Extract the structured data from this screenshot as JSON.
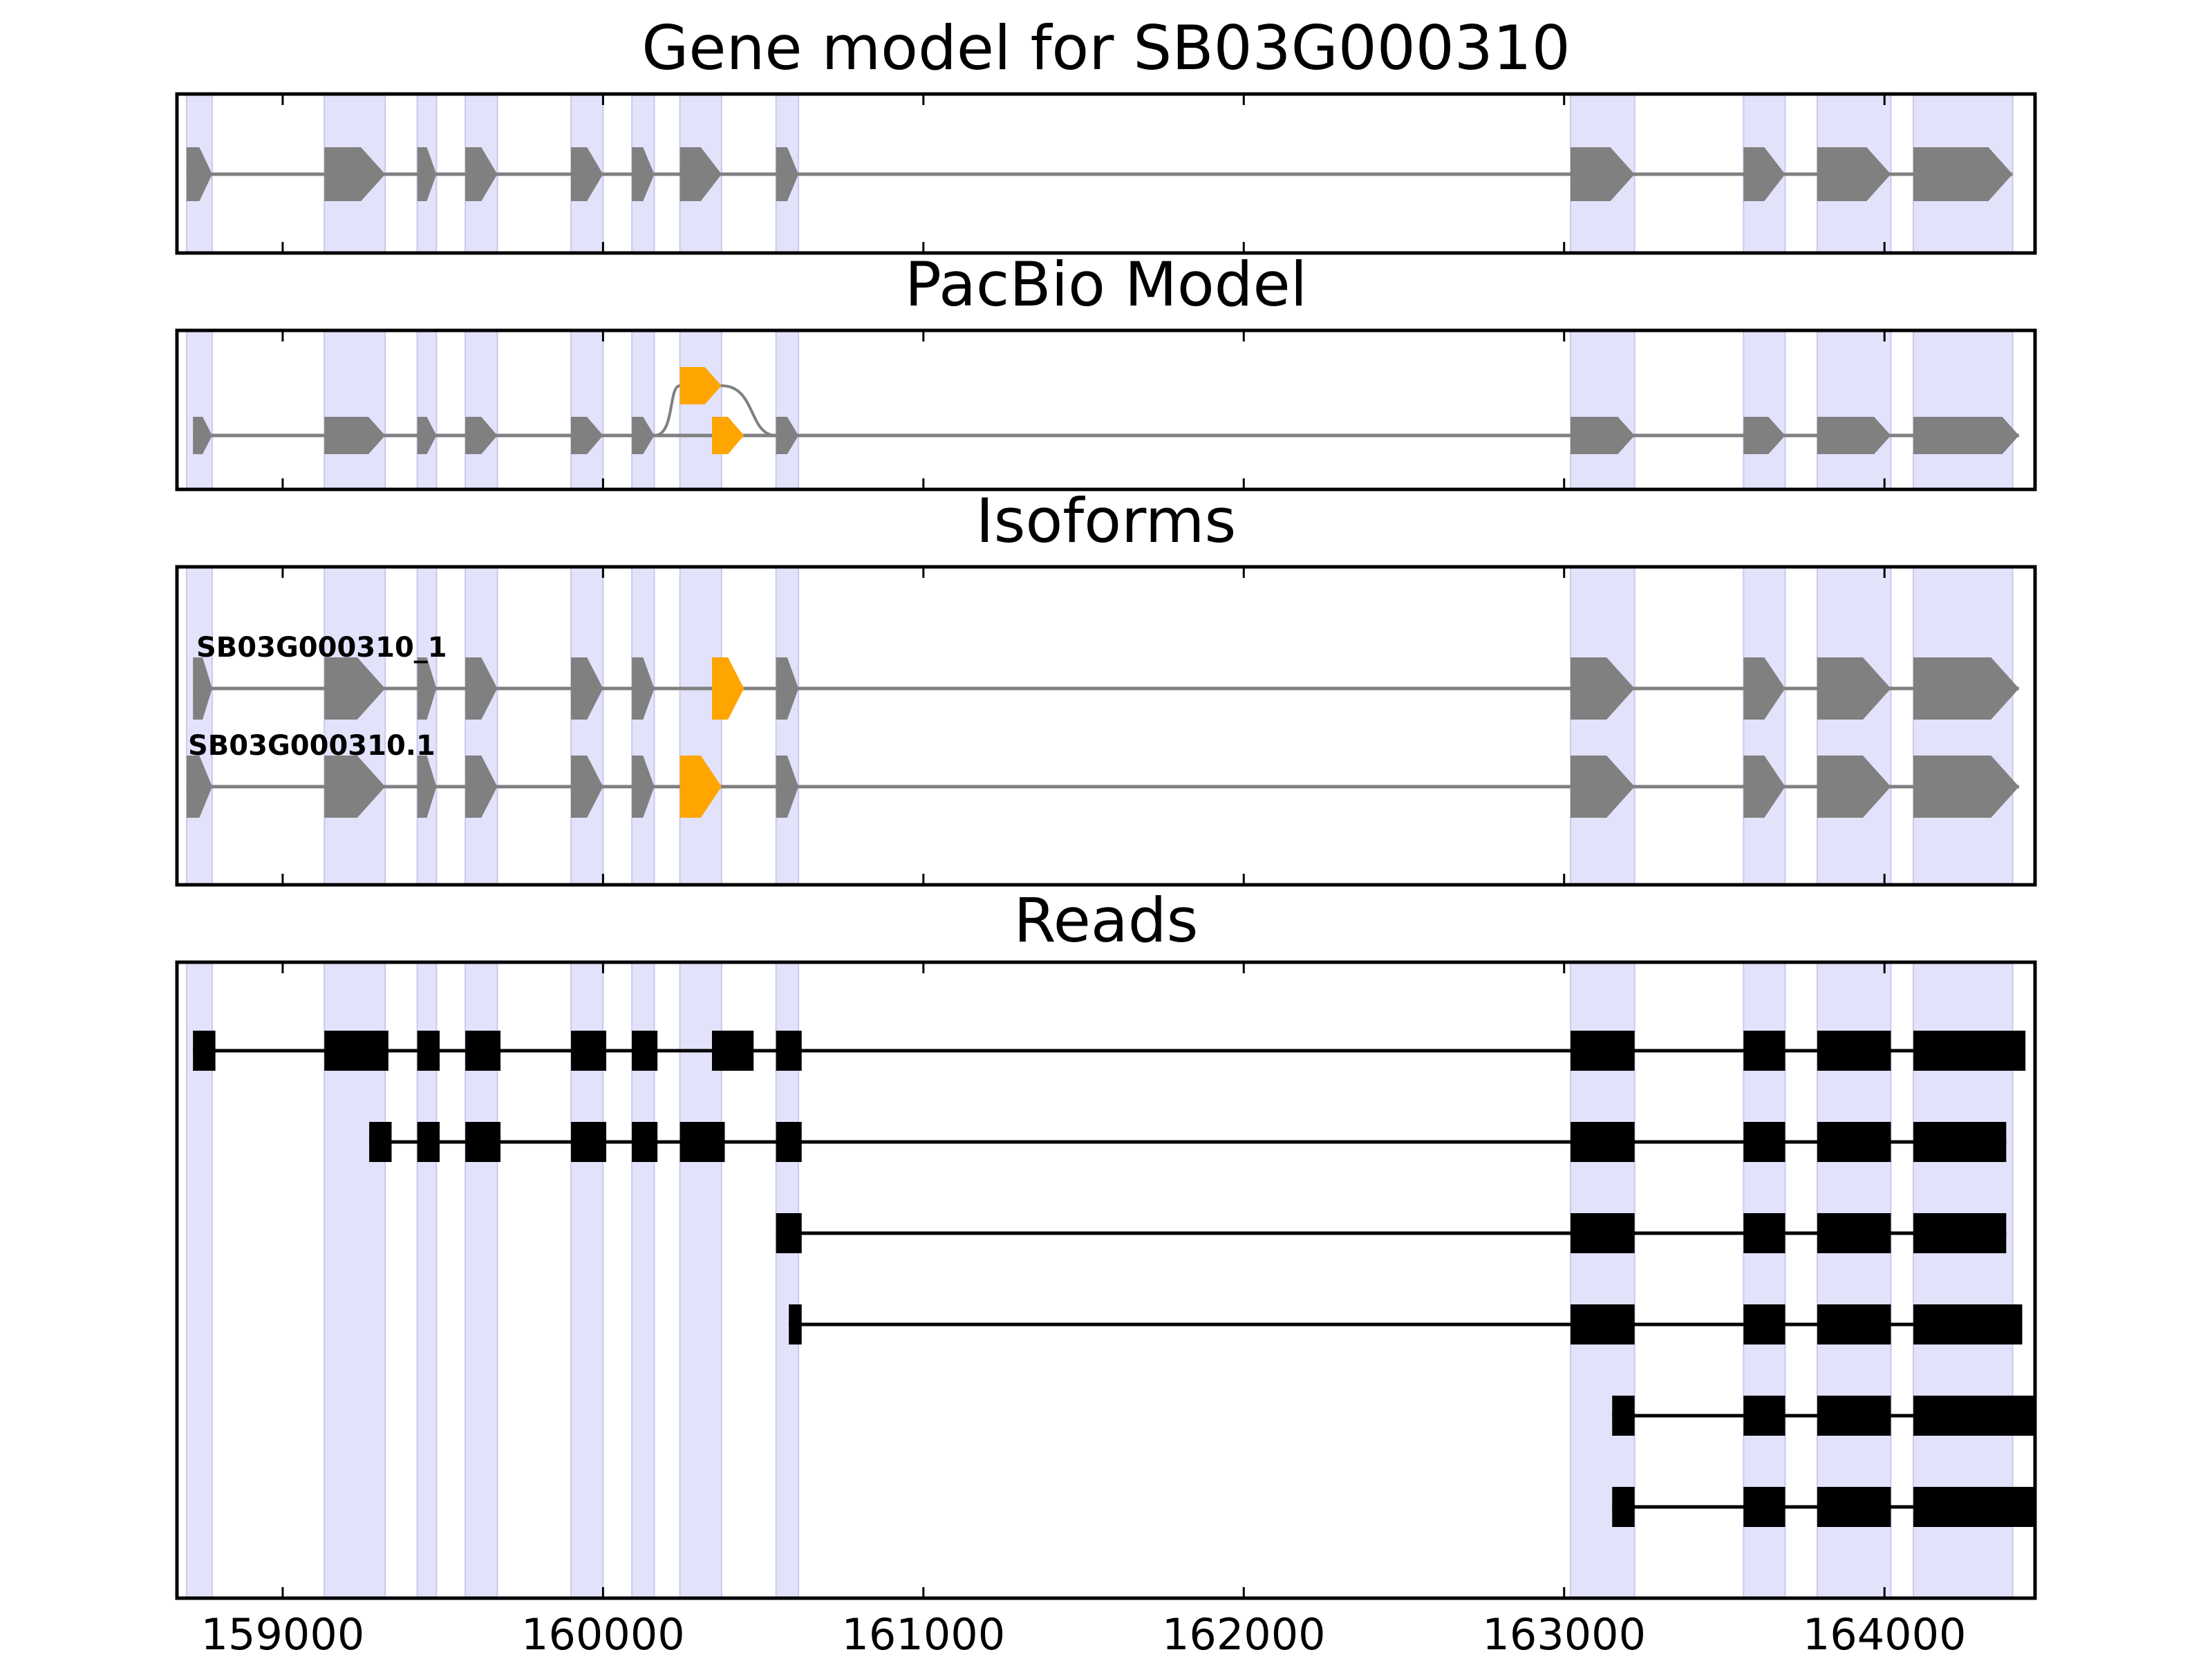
{
  "chart_data": {
    "type": "gene-track",
    "x_range": [
      158670,
      164470
    ],
    "x_ticks": [
      159000,
      160000,
      161000,
      162000,
      163000,
      164000
    ],
    "colors": {
      "exon_band": "#e2e2fb",
      "gene_exon": "#808080",
      "alt_exon": "#ffa500",
      "read": "#000000",
      "axis": "#000000"
    },
    "exon_bands": [
      [
        158700,
        158780
      ],
      [
        159130,
        159320
      ],
      [
        159420,
        159480
      ],
      [
        159570,
        159670
      ],
      [
        159900,
        160000
      ],
      [
        160090,
        160160
      ],
      [
        160240,
        160370
      ],
      [
        160540,
        160610
      ],
      [
        163020,
        163220
      ],
      [
        163560,
        163690
      ],
      [
        163790,
        164020
      ],
      [
        164090,
        164400
      ]
    ],
    "panels": [
      {
        "title": "Gene model for SB03G000310",
        "tracks": [
          {
            "label": "",
            "color": "gene_exon",
            "exons": [
              [
                158700,
                158780
              ],
              [
                159130,
                159320
              ],
              [
                159420,
                159480
              ],
              [
                159570,
                159670
              ],
              [
                159900,
                160000
              ],
              [
                160090,
                160160
              ],
              [
                160240,
                160370
              ],
              [
                160540,
                160610
              ],
              [
                163020,
                163220
              ],
              [
                163560,
                163690
              ],
              [
                163790,
                164020
              ],
              [
                164090,
                164400
              ]
            ]
          }
        ]
      },
      {
        "title": "PacBio Model",
        "tracks": [
          {
            "label": "",
            "color": "gene_exon",
            "exons": [
              [
                158720,
                158780
              ],
              [
                159130,
                159320
              ],
              [
                159420,
                159480
              ],
              [
                159570,
                159670
              ],
              [
                159900,
                160000
              ],
              [
                160090,
                160160
              ],
              [
                160340,
                160440
              ],
              [
                160540,
                160610
              ],
              [
                163020,
                163220
              ],
              [
                163560,
                163690
              ],
              [
                163790,
                164020
              ],
              [
                164090,
                164420
              ]
            ],
            "alt_exons": [
              [
                160340,
                160440
              ]
            ],
            "bump": {
              "exon": [
                160240,
                160370
              ],
              "from": 160160,
              "to": 160540
            }
          }
        ]
      },
      {
        "title": "Isoforms",
        "tracks": [
          {
            "label": "SB03G000310_1",
            "color": "gene_exon",
            "exons": [
              [
                158720,
                158780
              ],
              [
                159130,
                159320
              ],
              [
                159420,
                159480
              ],
              [
                159570,
                159670
              ],
              [
                159900,
                160000
              ],
              [
                160090,
                160160
              ],
              [
                160340,
                160440
              ],
              [
                160540,
                160610
              ],
              [
                163020,
                163220
              ],
              [
                163560,
                163690
              ],
              [
                163790,
                164020
              ],
              [
                164090,
                164420
              ]
            ],
            "alt_exons": [
              [
                160340,
                160440
              ]
            ]
          },
          {
            "label": "SB03G000310.1",
            "color": "gene_exon",
            "exons": [
              [
                158700,
                158780
              ],
              [
                159130,
                159320
              ],
              [
                159420,
                159480
              ],
              [
                159570,
                159670
              ],
              [
                159900,
                160000
              ],
              [
                160090,
                160160
              ],
              [
                160240,
                160370
              ],
              [
                160540,
                160610
              ],
              [
                163020,
                163220
              ],
              [
                163560,
                163690
              ],
              [
                163790,
                164020
              ],
              [
                164090,
                164420
              ]
            ],
            "alt_exons": [
              [
                160240,
                160370
              ]
            ]
          }
        ]
      },
      {
        "title": "Reads",
        "tracks": [
          {
            "exons": [
              [
                158720,
                158790
              ],
              [
                159130,
                159330
              ],
              [
                159420,
                159490
              ],
              [
                159570,
                159680
              ],
              [
                159900,
                160010
              ],
              [
                160090,
                160170
              ],
              [
                160340,
                160470
              ],
              [
                160540,
                160620
              ],
              [
                163020,
                163220
              ],
              [
                163560,
                163690
              ],
              [
                163790,
                164020
              ],
              [
                164090,
                164440
              ]
            ]
          },
          {
            "exons": [
              [
                159270,
                159340
              ],
              [
                159420,
                159490
              ],
              [
                159570,
                159680
              ],
              [
                159900,
                160010
              ],
              [
                160090,
                160170
              ],
              [
                160240,
                160380
              ],
              [
                160540,
                160620
              ],
              [
                163020,
                163220
              ],
              [
                163560,
                163690
              ],
              [
                163790,
                164020
              ],
              [
                164090,
                164380
              ]
            ]
          },
          {
            "exons": [
              [
                160540,
                160620
              ],
              [
                163020,
                163220
              ],
              [
                163560,
                163690
              ],
              [
                163790,
                164020
              ],
              [
                164090,
                164380
              ]
            ]
          },
          {
            "exons": [
              [
                160580,
                160620
              ],
              [
                163020,
                163220
              ],
              [
                163560,
                163690
              ],
              [
                163790,
                164020
              ],
              [
                164090,
                164430
              ]
            ]
          },
          {
            "exons": [
              [
                163150,
                163220
              ],
              [
                163560,
                163690
              ],
              [
                163790,
                164020
              ],
              [
                164090,
                164470
              ]
            ]
          },
          {
            "exons": [
              [
                163150,
                163220
              ],
              [
                163560,
                163690
              ],
              [
                163790,
                164020
              ],
              [
                164090,
                164470
              ]
            ]
          }
        ]
      }
    ]
  }
}
